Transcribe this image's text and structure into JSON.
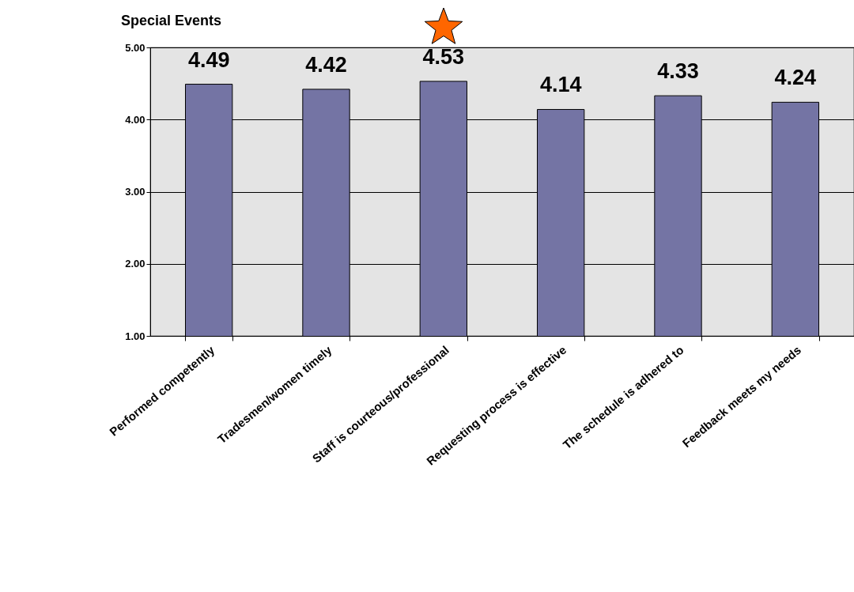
{
  "chart_data": {
    "type": "bar",
    "title": "Special Events",
    "categories": [
      "Performed competently",
      "Tradesmen/women timely",
      "Staff is courteous/professional",
      "Requesting process is effective",
      "The schedule is  adhered to",
      "Feedback meets my needs"
    ],
    "values": [
      4.49,
      4.42,
      4.53,
      4.14,
      4.33,
      4.24
    ],
    "color": "#7474a4",
    "ylim": [
      1,
      5
    ],
    "yticks": [
      {
        "value": 1,
        "label": "1.00"
      },
      {
        "value": 2,
        "label": "2.00"
      },
      {
        "value": 3,
        "label": "3.00"
      },
      {
        "value": 4,
        "label": "4.00"
      },
      {
        "value": 5,
        "label": "5.00"
      }
    ],
    "grid": "y",
    "data_labels": true
  }
}
